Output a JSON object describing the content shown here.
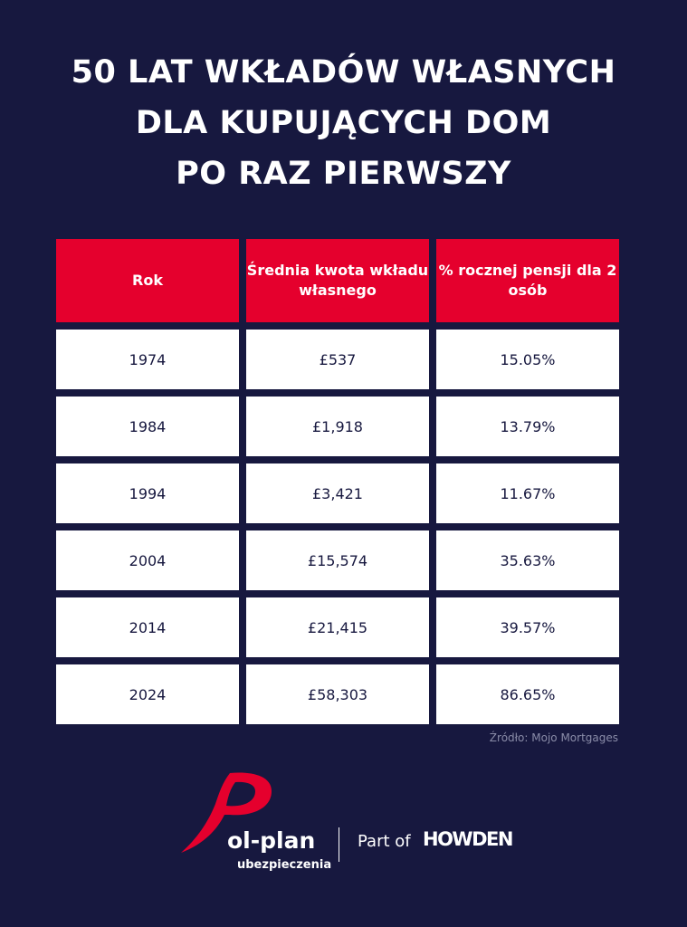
{
  "title": {
    "line1": "50 LAT WKŁADÓW WŁASNYCH",
    "line2": "DLA KUPUJĄCYCH DOM",
    "line3": "PO RAZ PIERWSZY"
  },
  "table": {
    "headers": [
      "Rok",
      "Średnia kwota wkładu własnego",
      "% rocznej pensji dla 2 osób"
    ],
    "rows": [
      [
        "1974",
        "£537",
        "15.05%"
      ],
      [
        "1984",
        "£1,918",
        "13.79%"
      ],
      [
        "1994",
        "£3,421",
        "11.67%"
      ],
      [
        "2004",
        "£15,574",
        "35.63%"
      ],
      [
        "2014",
        "£21,415",
        "39.57%"
      ],
      [
        "2024",
        "£58,303",
        "86.65%"
      ]
    ]
  },
  "source": "Źródło: Mojo Mortgages",
  "footer": {
    "brand": "ol-plan",
    "brand_sub": "ubezpieczenia",
    "part_of": "Part of",
    "partner": "HOWDEN"
  },
  "colors": {
    "background": "#17183f",
    "accent": "#e5002d",
    "cell": "#ffffff"
  }
}
